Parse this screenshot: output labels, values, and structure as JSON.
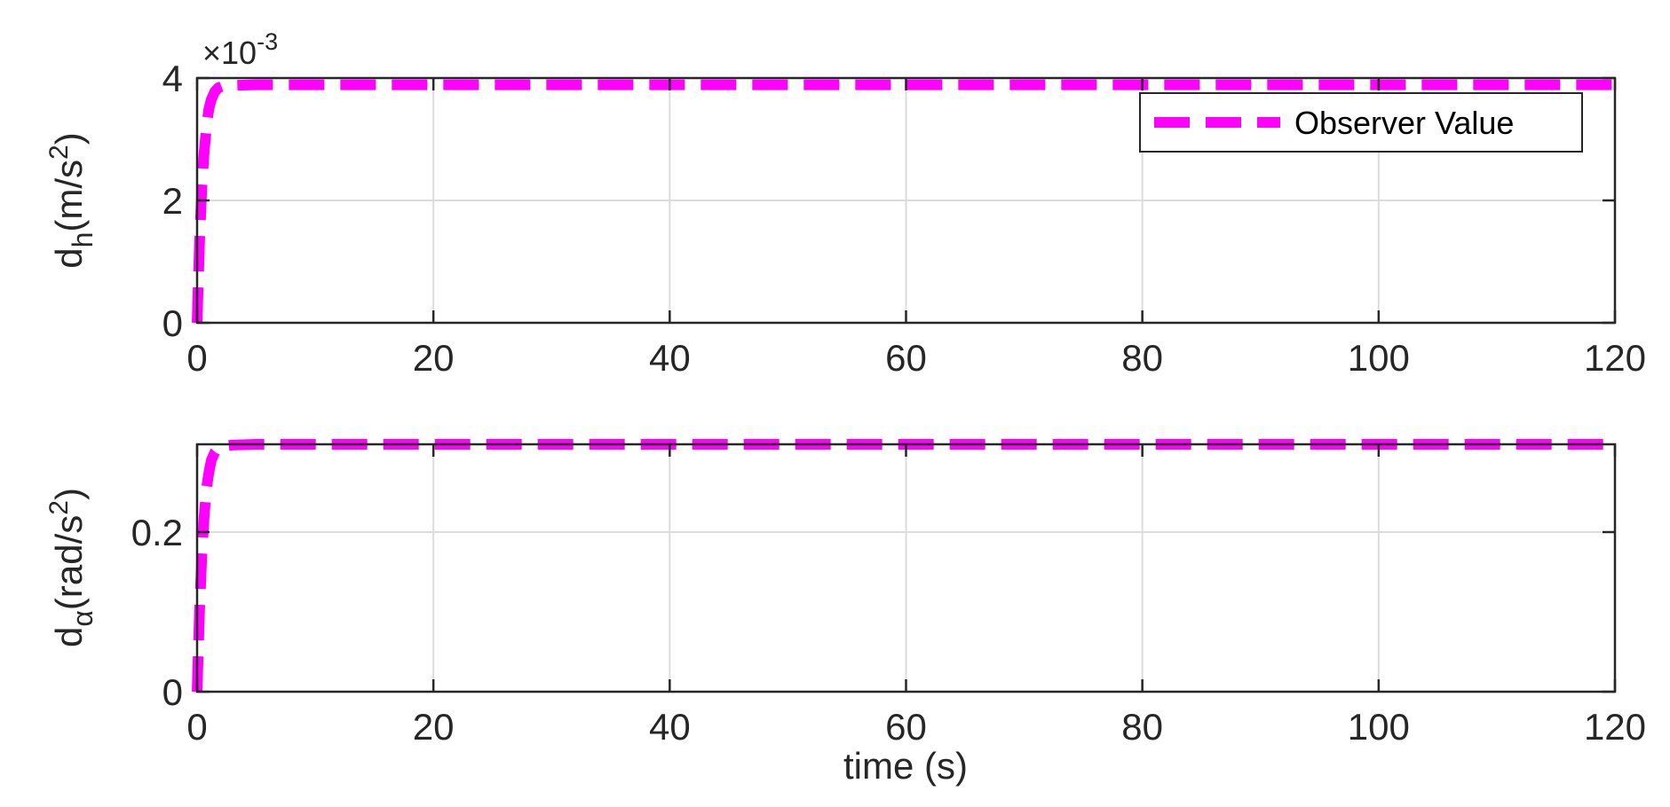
{
  "chart_data": [
    {
      "type": "line",
      "ylabel": {
        "base": "d",
        "subscript": "h",
        "unit": "(m/s",
        "power": "2",
        "close": ")"
      },
      "y_exponent": {
        "prefix": "×10",
        "power": "-3"
      },
      "xlim": [
        0,
        120
      ],
      "ylim": [
        0,
        4
      ],
      "x_ticks": [
        "0",
        "20",
        "40",
        "60",
        "80",
        "100",
        "120"
      ],
      "y_ticks": [
        "0",
        "2",
        "4"
      ],
      "grid": true,
      "legend": {
        "placement": "top-right",
        "entries": [
          "Observer Value"
        ]
      },
      "series": [
        {
          "name": "Observer Value",
          "color": "#ff00ff",
          "style": "dashed",
          "x": [
            0,
            0.2,
            0.4,
            0.6,
            0.8,
            1.0,
            1.2,
            1.5,
            1.8,
            2.2,
            3,
            5,
            10,
            20,
            40,
            60,
            80,
            100,
            120
          ],
          "y": [
            0,
            1.3,
            2.2,
            2.8,
            3.2,
            3.5,
            3.65,
            3.78,
            3.84,
            3.87,
            3.88,
            3.89,
            3.89,
            3.89,
            3.89,
            3.89,
            3.89,
            3.89,
            3.89
          ]
        }
      ]
    },
    {
      "type": "line",
      "ylabel": {
        "base": "d",
        "subscript": "α",
        "unit": "(rad/s",
        "power": "2",
        "close": ")"
      },
      "xlabel": "time (s)",
      "xlim": [
        0,
        120
      ],
      "ylim": [
        0,
        0.31
      ],
      "x_ticks": [
        "0",
        "20",
        "40",
        "60",
        "80",
        "100",
        "120"
      ],
      "y_ticks": [
        "0",
        "0.2"
      ],
      "y_tick_values": [
        0,
        0.2
      ],
      "grid": true,
      "series": [
        {
          "color": "#ff00ff",
          "style": "dashed",
          "x": [
            0,
            0.2,
            0.4,
            0.6,
            0.8,
            1.0,
            1.2,
            1.5,
            1.8,
            2.2,
            3,
            5,
            10,
            20,
            40,
            60,
            80,
            100,
            120
          ],
          "y": [
            0,
            0.1,
            0.17,
            0.22,
            0.255,
            0.275,
            0.29,
            0.3,
            0.305,
            0.308,
            0.309,
            0.31,
            0.31,
            0.31,
            0.31,
            0.31,
            0.31,
            0.31,
            0.31
          ]
        }
      ]
    }
  ]
}
